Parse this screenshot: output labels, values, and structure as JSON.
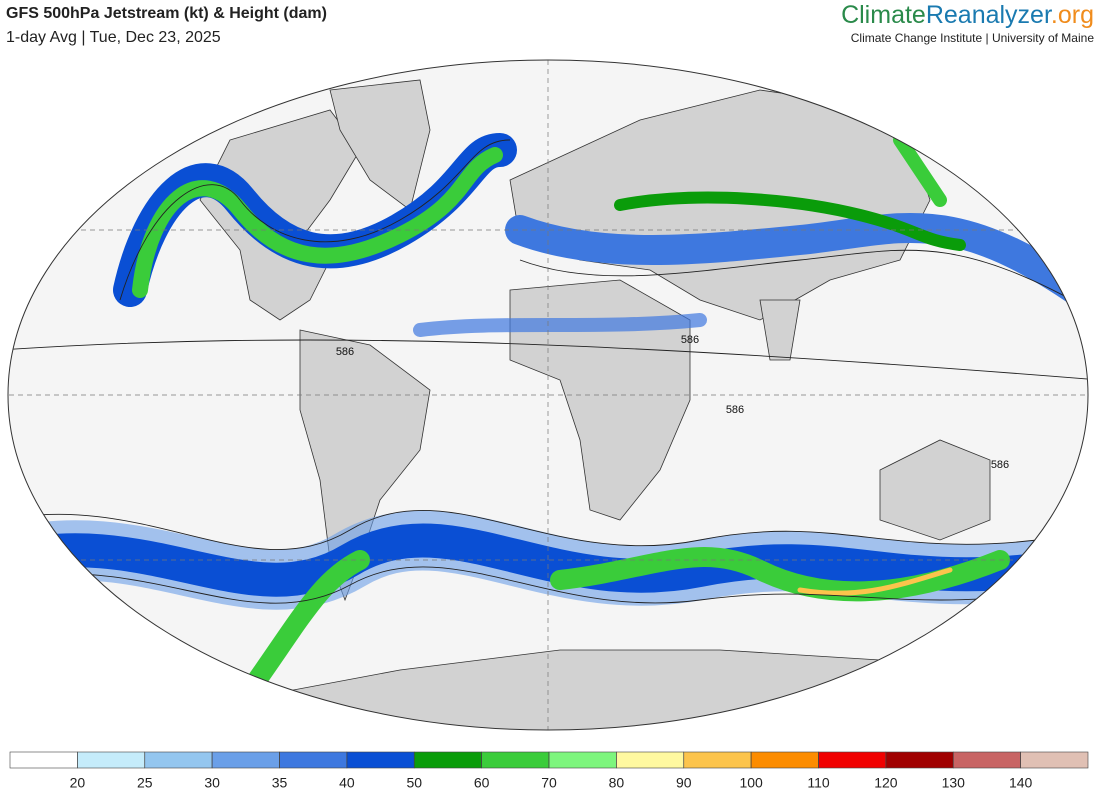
{
  "header": {
    "title": "GFS 500hPa Jetstream (kt) & Height (dam)",
    "subtitle": "1-day Avg | Tue, Dec 23, 2025",
    "logo": {
      "part1": "Climate",
      "part2": "Reanalyzer",
      "part3": ".org"
    },
    "affiliation": "Climate Change Institute | University of Maine"
  },
  "map": {
    "contour_labels": [
      "586",
      "586",
      "586",
      "586"
    ]
  },
  "colorbar": {
    "colors": [
      "#ffffff",
      "#c5ecfb",
      "#94c6ef",
      "#6a9fe8",
      "#3e78df",
      "#0a4fd4",
      "#0a9c0a",
      "#3acc3a",
      "#7df57d",
      "#fff9a0",
      "#fcc44c",
      "#fc8c00",
      "#f00000",
      "#a00000",
      "#c86464",
      "#e0c0b4"
    ],
    "ticks": [
      20,
      25,
      30,
      35,
      40,
      50,
      60,
      70,
      80,
      90,
      100,
      110,
      120,
      130,
      140
    ]
  }
}
